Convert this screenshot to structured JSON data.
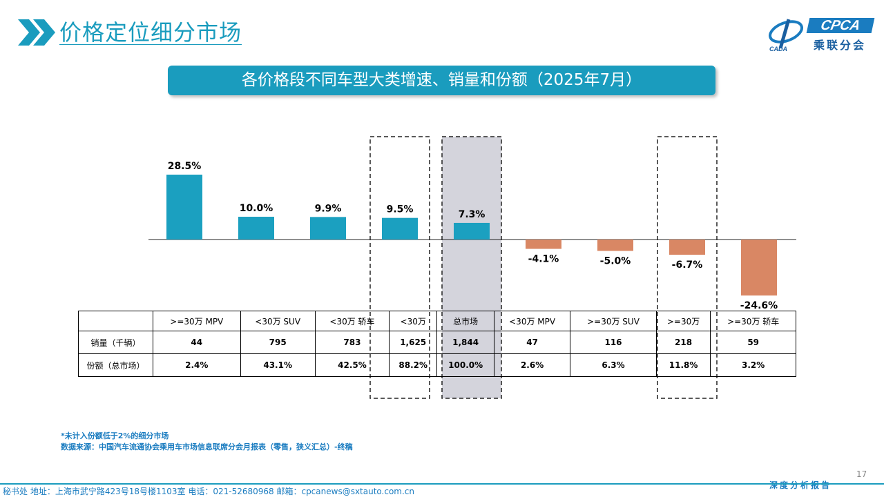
{
  "header": {
    "title": "价格定位细分市场",
    "logo_brand": "CPCA",
    "logo_cn": "乘联分会"
  },
  "subtitle": "各价格段不同车型大类增速、销量和份额（2025年7月）",
  "chart_data": {
    "type": "bar",
    "categories": [
      ">=30万 MPV",
      "<30万 SUV",
      "<30万 轿车",
      "<30万",
      "总市场",
      "<30万 MPV",
      ">=30万 SUV",
      ">=30万",
      ">=30万 轿车"
    ],
    "values": [
      28.5,
      10.0,
      9.9,
      9.5,
      7.3,
      -4.1,
      -5.0,
      -6.7,
      -24.6
    ],
    "data_labels": [
      "28.5%",
      "10.0%",
      "9.9%",
      "9.5%",
      "7.3%",
      "-4.1%",
      "-5.0%",
      "-6.7%",
      "-24.6%"
    ],
    "colors": {
      "positive": "#1ba0c0",
      "negative": "#d98764"
    },
    "highlighted_categories": [
      "<30万",
      "总市场",
      ">=30万"
    ],
    "shaded_category": "总市场"
  },
  "table": {
    "headers": [
      "",
      ">=30万 MPV",
      "<30万 SUV",
      "<30万 轿车",
      "<30万",
      "总市场",
      "<30万 MPV",
      ">=30万 SUV",
      ">=30万",
      ">=30万 轿车"
    ],
    "rows": [
      {
        "label": "销量（千辆）",
        "values": [
          "44",
          "795",
          "783",
          "1,625",
          "1,844",
          "47",
          "116",
          "218",
          "59"
        ]
      },
      {
        "label": "份额（总市场）",
        "values": [
          "2.4%",
          "43.1%",
          "42.5%",
          "88.2%",
          "100.0%",
          "2.6%",
          "6.3%",
          "11.8%",
          "3.2%"
        ]
      }
    ]
  },
  "footnotes": {
    "note": "*未计入份额低于2%的细分市场",
    "source": "数据来源：中国汽车流通协会乘用车市场信息联席分会月报表（零售，狭义汇总）-终稿"
  },
  "footer": {
    "address": "秘书处   地址：上海市武宁路423号18号楼1103室   电话：021-52680968   邮箱：cpcanews@sxtauto.com.cn",
    "page_number": "17",
    "report_tag": "深度分析报告"
  }
}
